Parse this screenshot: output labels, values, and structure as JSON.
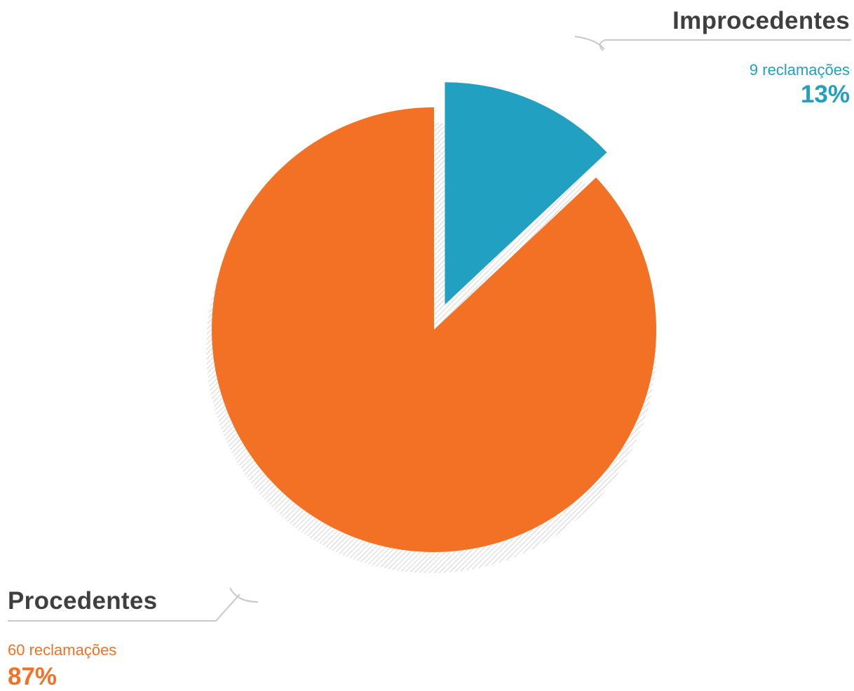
{
  "colors": {
    "procedentes": "#f27124",
    "improcedentes": "#21a0c1",
    "label_text": "#3f3f3f",
    "leader_line": "#c8c8c8",
    "shadow_hatch": "#c4c4c4"
  },
  "chart_data": {
    "type": "pie",
    "title": "",
    "slices": [
      {
        "name": "Improcedentes",
        "count": 9,
        "count_label": "9 reclamações",
        "percent": 13,
        "percent_label": "13%",
        "exploded": true
      },
      {
        "name": "Procedentes",
        "count": 60,
        "count_label": "60 reclamações",
        "percent": 87,
        "percent_label": "87%",
        "exploded": false
      }
    ],
    "legend": "none"
  }
}
